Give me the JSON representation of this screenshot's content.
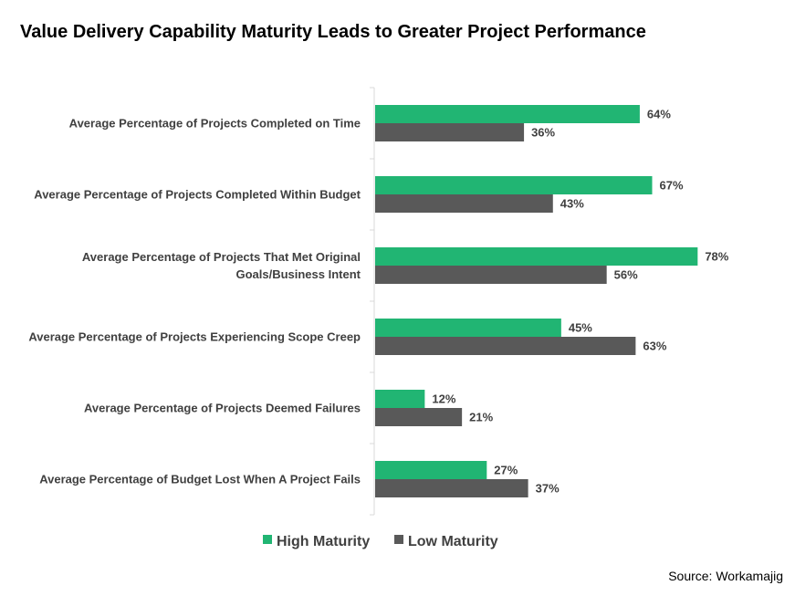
{
  "chart_data": {
    "type": "bar",
    "orientation": "horizontal",
    "title": "Value Delivery Capability Maturity Leads to Greater Project Performance",
    "categories": [
      [
        "Average Percentage of Projects Completed on Time"
      ],
      [
        "Average Percentage of Projects Completed Within Budget"
      ],
      [
        "Average Percentage of Projects That Met Original",
        "Goals/Business Intent"
      ],
      [
        "Average Percentage of Projects Experiencing Scope Creep"
      ],
      [
        "Average Percentage of Projects Deemed Failures"
      ],
      [
        "Average Percentage of Budget Lost When A Project Fails"
      ]
    ],
    "series": [
      {
        "name": "High Maturity",
        "color": "#21b573",
        "values": [
          64,
          67,
          78,
          45,
          12,
          27
        ],
        "labels": [
          "64%",
          "67%",
          "78%",
          "45%",
          "12%",
          "27%"
        ]
      },
      {
        "name": "Low Maturity",
        "color": "#595959",
        "values": [
          36,
          43,
          56,
          63,
          21,
          37
        ],
        "labels": [
          "36%",
          "43%",
          "56%",
          "63%",
          "21%",
          "37%"
        ]
      }
    ],
    "xlim": [
      0,
      100
    ],
    "unit": "%",
    "grid": false,
    "legend_position": "bottom",
    "source": "Source: Workamajig"
  }
}
